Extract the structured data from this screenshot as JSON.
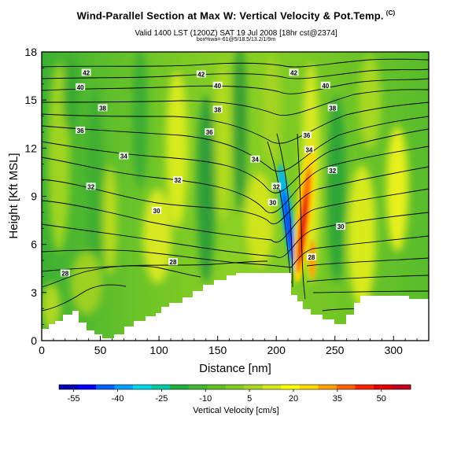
{
  "title": {
    "main": "Wind-Parallel Section at Max W: Vertical Velocity & Pot.Temp.",
    "main_mark": "(C)",
    "valid": "Valid 1400 LST (1200Z) SAT 19 Jul 2008 [18hr cst@2374]",
    "sub": "box%wa=-61@5/18.5/13.2/1/9m"
  },
  "chart_data": {
    "type": "heatmap",
    "xlabel": "Distance [nm]",
    "ylabel": "Height [Kft MSL]",
    "xlim": [
      0,
      330
    ],
    "ylim": [
      0,
      18
    ],
    "x_ticks": [
      "0",
      "50",
      "100",
      "150",
      "200",
      "250",
      "300"
    ],
    "y_ticks": [
      "0",
      "3",
      "6",
      "9",
      "12",
      "15",
      "18"
    ],
    "colorbar": {
      "label": "Vertical Velocity [cm/s]",
      "range": [
        -60,
        60
      ],
      "tick_labels": [
        "-55",
        "-40",
        "-25",
        "-10",
        "5",
        "20",
        "35",
        "50"
      ],
      "colors": [
        "#0000b0",
        "#0000ff",
        "#0060ff",
        "#00a0ff",
        "#00d8e8",
        "#00c8a0",
        "#20b040",
        "#40b830",
        "#60c020",
        "#80cc20",
        "#a8d820",
        "#d8e820",
        "#ffff00",
        "#ffd800",
        "#ffa000",
        "#ff6000",
        "#ff2000",
        "#e00000",
        "#c00020"
      ]
    },
    "contour_labels": [
      {
        "text": "42",
        "x": 38,
        "y": 16.7
      },
      {
        "text": "40",
        "x": 33,
        "y": 15.8
      },
      {
        "text": "38",
        "x": 52,
        "y": 14.5
      },
      {
        "text": "36",
        "x": 33,
        "y": 13.1
      },
      {
        "text": "34",
        "x": 70,
        "y": 11.5
      },
      {
        "text": "32",
        "x": 42,
        "y": 9.6
      },
      {
        "text": "30",
        "x": 98,
        "y": 8.1
      },
      {
        "text": "28",
        "x": 20,
        "y": 4.2
      },
      {
        "text": "28",
        "x": 112,
        "y": 4.9
      },
      {
        "text": "42",
        "x": 136,
        "y": 16.6
      },
      {
        "text": "40",
        "x": 150,
        "y": 15.9
      },
      {
        "text": "38",
        "x": 150,
        "y": 14.4
      },
      {
        "text": "36",
        "x": 143,
        "y": 13.0
      },
      {
        "text": "34",
        "x": 182,
        "y": 11.3
      },
      {
        "text": "32",
        "x": 116,
        "y": 10.0
      },
      {
        "text": "32",
        "x": 200,
        "y": 9.6
      },
      {
        "text": "30",
        "x": 197,
        "y": 8.6
      },
      {
        "text": "42",
        "x": 215,
        "y": 16.7
      },
      {
        "text": "40",
        "x": 242,
        "y": 15.9
      },
      {
        "text": "38",
        "x": 248,
        "y": 14.5
      },
      {
        "text": "36",
        "x": 226,
        "y": 12.8
      },
      {
        "text": "34",
        "x": 228,
        "y": 11.9
      },
      {
        "text": "32",
        "x": 248,
        "y": 10.6
      },
      {
        "text": "30",
        "x": 255,
        "y": 7.1
      },
      {
        "text": "28",
        "x": 230,
        "y": 5.2
      }
    ]
  }
}
